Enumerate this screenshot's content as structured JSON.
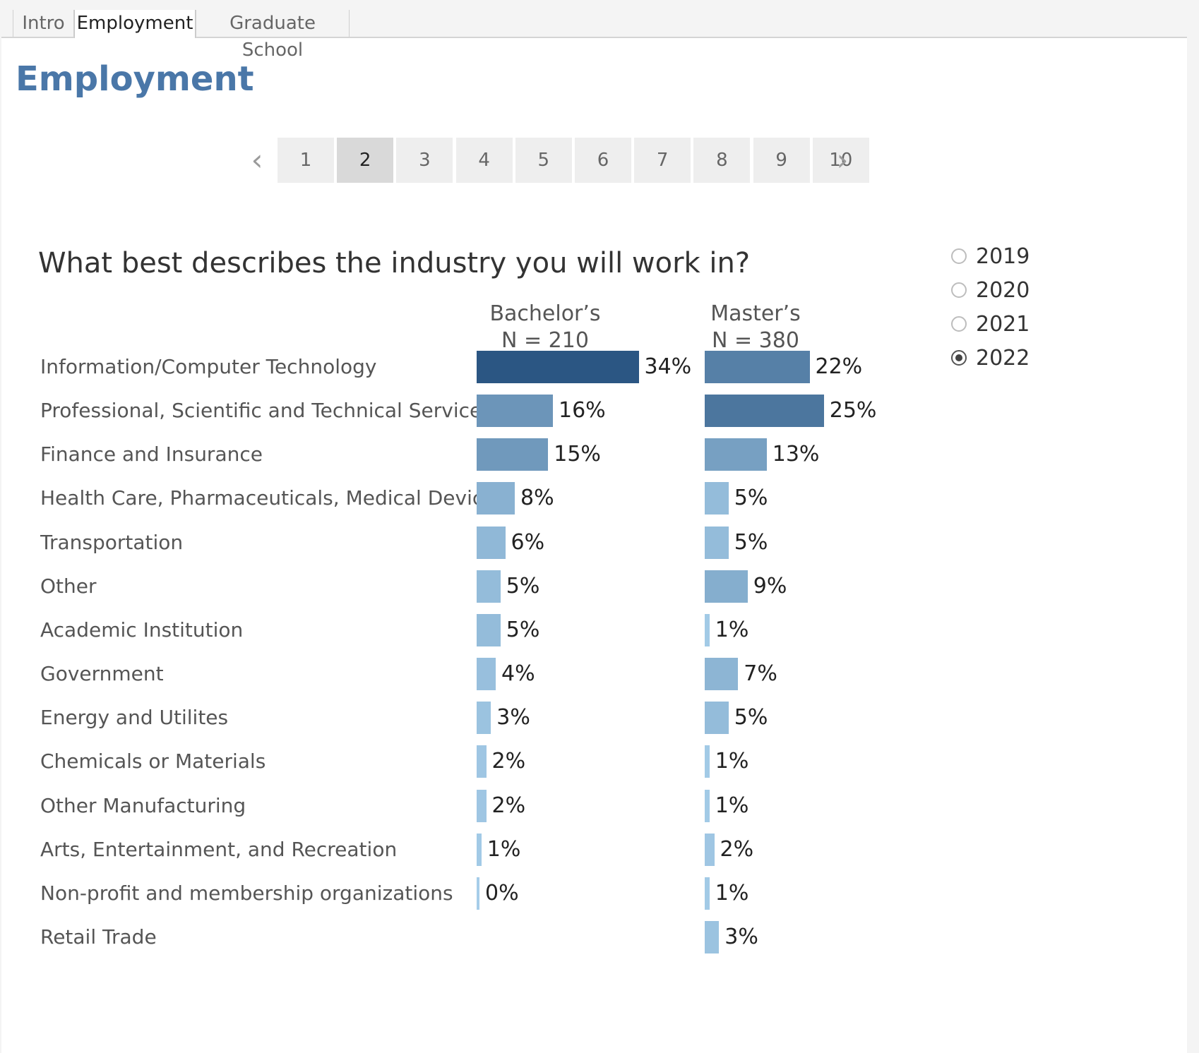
{
  "tabs": [
    {
      "label": "Intro",
      "active": false
    },
    {
      "label": "Employment",
      "active": true
    },
    {
      "label": "Graduate School",
      "active": false
    }
  ],
  "page_title": "Employment",
  "pager": {
    "prev_icon": "chevron-left-icon",
    "next_icon": "chevron-right-icon",
    "prev_glyph": "‹",
    "next_glyph": "›",
    "pages": [
      "1",
      "2",
      "3",
      "4",
      "5",
      "6",
      "7",
      "8",
      "9",
      "10"
    ],
    "current": "2"
  },
  "year_filter": {
    "options": [
      "2019",
      "2020",
      "2021",
      "2022"
    ],
    "selected": "2022"
  },
  "chart_data": {
    "type": "bar",
    "orientation": "horizontal",
    "title": "What best describes the industry you will work in?",
    "categories": [
      "Information/Computer Technology",
      "Professional, Scientific and Technical Services (in...",
      "Finance and Insurance",
      "Health Care, Pharmaceuticals, Medical Devices",
      "Transportation",
      "Other",
      "Academic Institution",
      "Government",
      "Energy and Utilites",
      "Chemicals or Materials",
      "Other Manufacturing",
      "Arts, Entertainment, and Recreation",
      "Non-profit and membership organizations",
      "Retail Trade"
    ],
    "series": [
      {
        "name": "Bachelor’s",
        "n_label": "N = 210",
        "values": [
          34,
          16,
          15,
          8,
          6,
          5,
          5,
          4,
          3,
          2,
          2,
          1,
          0,
          null
        ],
        "labels": [
          "34%",
          "16%",
          "15%",
          "8%",
          "6%",
          "5%",
          "5%",
          "4%",
          "3%",
          "2%",
          "2%",
          "1%",
          "0%",
          null
        ]
      },
      {
        "name": "Master’s",
        "n_label": "N = 380",
        "values": [
          22,
          25,
          13,
          5,
          5,
          9,
          1,
          7,
          5,
          1,
          1,
          2,
          1,
          3
        ],
        "labels": [
          "22%",
          "25%",
          "13%",
          "5%",
          "5%",
          "9%",
          "1%",
          "7%",
          "5%",
          "1%",
          "1%",
          "2%",
          "1%",
          "3%"
        ]
      }
    ],
    "unit": "%",
    "color_scale": [
      "#a6cde9",
      "#2b5683"
    ]
  }
}
